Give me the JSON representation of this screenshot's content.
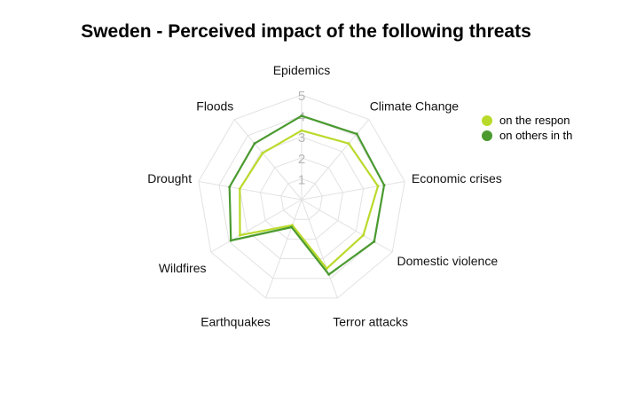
{
  "chart_data": {
    "type": "radar",
    "title": "Sweden - Perceived impact of the following threats",
    "axes": [
      "Epidemics",
      "Climate Change",
      "Economic crises",
      "Domestic violence",
      "Terror attacks",
      "Earthquakes",
      "Wildfires",
      "Drought",
      "Floods"
    ],
    "scale_ticks": [
      "1",
      "2",
      "3",
      "4",
      "5"
    ],
    "rlim": [
      0,
      5
    ],
    "grid": true,
    "legend_position": "top-right",
    "series": [
      {
        "name": "on the respon",
        "color": "#bada2b",
        "values": [
          3.3,
          3.5,
          3.7,
          3.4,
          3.5,
          1.3,
          3.4,
          3.0,
          2.9
        ]
      },
      {
        "name": "on others in th",
        "color": "#4a9a30",
        "values": [
          4.0,
          4.1,
          4.0,
          4.0,
          3.8,
          1.4,
          3.9,
          3.5,
          3.5
        ]
      }
    ]
  }
}
